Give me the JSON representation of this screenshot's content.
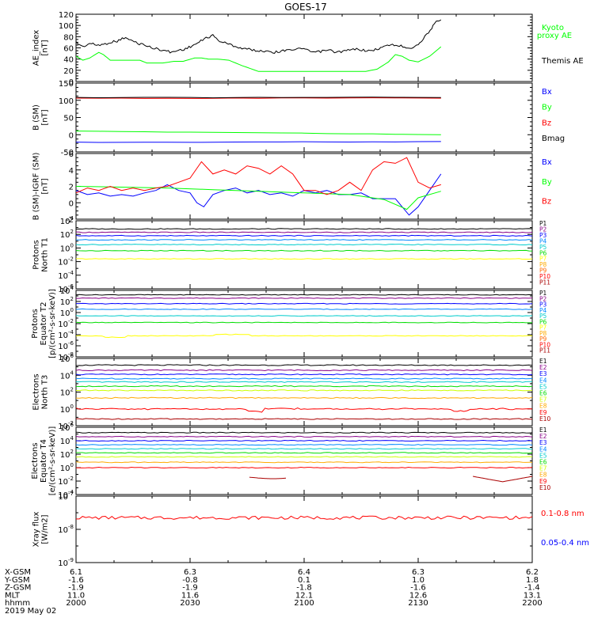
{
  "title": "GOES-17",
  "chart_data": [
    {
      "type": "line",
      "panel": "ae",
      "ylabel": [
        "AE_index",
        "[nT]"
      ],
      "yscale": "linear",
      "ylim": [
        0,
        120
      ],
      "yticks": [
        "0",
        "20",
        "40",
        "60",
        "80",
        "100",
        "120"
      ],
      "series": [
        {
          "name": "Kyoto",
          "name2": "proxy AE",
          "color": "#00ff00",
          "x": [
            2000,
            2003,
            2006,
            2010,
            2012,
            2015,
            2022,
            2028,
            2031,
            2038,
            2043,
            2047,
            2052,
            2055,
            2058,
            2062,
            2067,
            2073,
            2080,
            2090,
            2100,
            2112,
            2120,
            2127,
            2132,
            2137,
            2140,
            2143,
            2146,
            2150,
            2155,
            2158,
            2160
          ],
          "y": [
            45,
            38,
            42,
            52,
            48,
            38,
            38,
            38,
            33,
            33,
            36,
            36,
            42,
            42,
            40,
            40,
            38,
            28,
            18,
            18,
            18,
            18,
            18,
            18,
            22,
            35,
            48,
            45,
            38,
            35,
            45,
            55,
            62
          ]
        },
        {
          "name": "Themis AE",
          "color": "#000000",
          "x": [
            2000,
            2003,
            2006,
            2009,
            2012,
            2015,
            2018,
            2021,
            2024,
            2027,
            2030,
            2033,
            2036,
            2039,
            2042,
            2045,
            2048,
            2051,
            2054,
            2057,
            2060,
            2063,
            2066,
            2069,
            2072,
            2075,
            2078,
            2081,
            2084,
            2087,
            2090,
            2093,
            2096,
            2099,
            2102,
            2105,
            2108,
            2111,
            2114,
            2117,
            2120,
            2123,
            2126,
            2129,
            2132,
            2135,
            2138,
            2141,
            2144,
            2147,
            2150,
            2153,
            2156,
            2158,
            2160
          ],
          "y": [
            70,
            62,
            68,
            65,
            66,
            70,
            72,
            78,
            74,
            68,
            66,
            60,
            58,
            55,
            52,
            56,
            58,
            64,
            70,
            78,
            82,
            72,
            68,
            64,
            60,
            58,
            56,
            54,
            55,
            52,
            54,
            58,
            56,
            60,
            54,
            52,
            54,
            56,
            52,
            54,
            56,
            58,
            56,
            54,
            58,
            62,
            66,
            64,
            62,
            60,
            66,
            80,
            96,
            106,
            110
          ]
        }
      ]
    },
    {
      "type": "line",
      "panel": "b",
      "ylabel": [
        "B (SM)",
        "[nT]"
      ],
      "yscale": "linear",
      "ylim": [
        -50,
        150
      ],
      "yticks": [
        "-50",
        "0",
        "50",
        "100",
        "150"
      ],
      "series": [
        {
          "name": "Bx",
          "color": "#0000ff",
          "x": [
            2000,
            2040,
            2080,
            2120,
            2160
          ],
          "y": [
            -22,
            -22,
            -21,
            -21,
            -20
          ]
        },
        {
          "name": "By",
          "color": "#00ff00",
          "x": [
            2000,
            2040,
            2080,
            2120,
            2160
          ],
          "y": [
            10,
            8,
            6,
            3,
            0
          ]
        },
        {
          "name": "Bz",
          "color": "#ff0000",
          "x": [
            2000,
            2040,
            2080,
            2120,
            2160
          ],
          "y": [
            106,
            106,
            106,
            107,
            106
          ]
        },
        {
          "name": "Bmag",
          "color": "#000000",
          "x": [
            2000,
            2040,
            2080,
            2120,
            2160
          ],
          "y": [
            108,
            108,
            108,
            109,
            108
          ]
        }
      ]
    },
    {
      "type": "line",
      "panel": "bigrf",
      "ylabel": [
        "B (SM)-IGRF (SM)",
        "[nT]"
      ],
      "yscale": "linear",
      "ylim": [
        -2,
        6
      ],
      "yticks": [
        "-2",
        "0",
        "2",
        "4",
        "6"
      ],
      "series": [
        {
          "name": "Bx",
          "color": "#0000ff",
          "x": [
            2000,
            2005,
            2010,
            2015,
            2020,
            2025,
            2030,
            2035,
            2040,
            2045,
            2050,
            2053,
            2056,
            2060,
            2065,
            2070,
            2075,
            2080,
            2085,
            2090,
            2095,
            2100,
            2105,
            2110,
            2115,
            2120,
            2125,
            2130,
            2135,
            2140,
            2143,
            2146,
            2150,
            2155,
            2160
          ],
          "y": [
            1.5,
            1.0,
            1.2,
            0.8,
            1.0,
            0.8,
            1.2,
            1.5,
            2.2,
            1.5,
            1.2,
            0.0,
            -0.5,
            1.0,
            1.5,
            1.8,
            1.2,
            1.5,
            1.0,
            1.2,
            0.8,
            1.5,
            1.2,
            1.5,
            1.0,
            1.0,
            1.2,
            0.5,
            0.5,
            0.5,
            -0.5,
            -1.5,
            -0.5,
            1.5,
            3.5
          ]
        },
        {
          "name": "By",
          "color": "#00ff00",
          "x": [
            2000,
            2020,
            2040,
            2060,
            2080,
            2100,
            2120,
            2135,
            2145,
            2150,
            2160
          ],
          "y": [
            2.0,
            1.9,
            1.8,
            1.6,
            1.4,
            1.2,
            1.0,
            0.4,
            -0.8,
            0.6,
            1.4
          ]
        },
        {
          "name": "Bz",
          "color": "#ff0000",
          "x": [
            2000,
            2005,
            2010,
            2015,
            2020,
            2025,
            2030,
            2035,
            2040,
            2045,
            2050,
            2055,
            2060,
            2065,
            2070,
            2075,
            2080,
            2085,
            2090,
            2095,
            2100,
            2105,
            2110,
            2115,
            2120,
            2125,
            2130,
            2135,
            2140,
            2145,
            2150,
            2155,
            2160
          ],
          "y": [
            1.2,
            1.8,
            1.5,
            2.0,
            1.5,
            1.8,
            1.5,
            1.8,
            2.0,
            2.5,
            3.0,
            5.0,
            3.5,
            4.0,
            3.5,
            4.5,
            4.2,
            3.5,
            4.5,
            3.5,
            1.5,
            1.5,
            1.0,
            1.5,
            2.5,
            1.5,
            4.0,
            5.0,
            4.8,
            5.5,
            2.5,
            1.8,
            2.2
          ]
        }
      ]
    },
    {
      "type": "line",
      "panel": "protons-t1",
      "ylabel": [
        "Protons",
        "North T1"
      ],
      "yscale": "log",
      "ylim": [
        -6,
        4
      ],
      "yticks": [
        "10^-6",
        "10^-4",
        "10^-2",
        "10^0",
        "10^2",
        "10^4"
      ],
      "series": [
        {
          "name": "P1",
          "color": "#000000",
          "y": 2.8
        },
        {
          "name": "P2",
          "color": "#880088",
          "y": 2.3
        },
        {
          "name": "P3",
          "color": "#0000ff",
          "y": 1.8
        },
        {
          "name": "P4",
          "color": "#0088ff",
          "y": 1.2
        },
        {
          "name": "P5",
          "color": "#00cccc",
          "y": 0.5
        },
        {
          "name": "P6",
          "color": "#00dd00",
          "y": -0.4
        },
        {
          "name": "P7",
          "color": "#ffff00",
          "y": -1.6
        },
        {
          "name": "P8",
          "color": "#ffaa00",
          "y": -2.9
        },
        {
          "name": "P9",
          "color": "#ff6600",
          "y": -4.0
        },
        {
          "name": "P10",
          "color": "#ff0000",
          "y": -5.0
        },
        {
          "name": "P11",
          "color": "#aa0000",
          "y": -5.5
        }
      ],
      "note": "P8-P11 not drawn in panel"
    },
    {
      "type": "line",
      "panel": "protons-t2",
      "ylabel": [
        "Protons",
        "Equator T2",
        "[p/(cm²-s-sr-keV)]"
      ],
      "yscale": "log",
      "ylim": [
        -8,
        4
      ],
      "yticks": [
        "10^-8",
        "10^-6",
        "10^-4",
        "10^-2",
        "10^0",
        "10^2",
        "10^4"
      ],
      "series": [
        {
          "name": "P1",
          "color": "#000000",
          "y": 3.2
        },
        {
          "name": "P2",
          "color": "#880088",
          "y": 2.6
        },
        {
          "name": "P3",
          "color": "#0000ff",
          "y": 1.6
        },
        {
          "name": "P4",
          "color": "#0088ff",
          "y": 0.6
        },
        {
          "name": "P5",
          "color": "#00cccc",
          "y": -0.6
        },
        {
          "name": "P6",
          "color": "#00dd00",
          "y": -1.8
        },
        {
          "name": "P7",
          "color": "#ffff00",
          "y": -4.2
        },
        {
          "name": "P8",
          "color": "#ffaa00",
          "y": -5
        },
        {
          "name": "P9",
          "color": "#ff6600",
          "y": -6
        },
        {
          "name": "P10",
          "color": "#ff0000",
          "y": -7
        },
        {
          "name": "P11",
          "color": "#aa0000",
          "y": -7.5
        }
      ]
    },
    {
      "type": "line",
      "panel": "electrons-t3",
      "ylabel": [
        "Electrons",
        "North T3"
      ],
      "yscale": "log",
      "ylim": [
        -2,
        6
      ],
      "yticks": [
        "10^-2",
        "10^0",
        "10^2",
        "10^4",
        "10^6"
      ],
      "series": [
        {
          "name": "E1",
          "color": "#000000",
          "y": 5.2
        },
        {
          "name": "E2",
          "color": "#880088",
          "y": 4.6
        },
        {
          "name": "E3",
          "color": "#0000ff",
          "y": 4.1
        },
        {
          "name": "E4",
          "color": "#0088ff",
          "y": 3.6
        },
        {
          "name": "E5",
          "color": "#00cccc",
          "y": 3.2
        },
        {
          "name": "E6",
          "color": "#00dd00",
          "y": 2.7
        },
        {
          "name": "E7",
          "color": "#ccff00",
          "y": 2.2
        },
        {
          "name": "E8",
          "color": "#ffaa00",
          "y": 1.3
        },
        {
          "name": "E9",
          "color": "#ff0000",
          "y": 0.0
        },
        {
          "name": "E10",
          "color": "#aa0000",
          "y": -1.2
        }
      ]
    },
    {
      "type": "line",
      "panel": "electrons-t4",
      "ylabel": [
        "Electrons",
        "Equator T4",
        "[e/(cm²-s-sr-keV)]"
      ],
      "yscale": "log",
      "ylim": [
        -4,
        6
      ],
      "yticks": [
        "10^-4",
        "10^-2",
        "10^0",
        "10^2",
        "10^4",
        "10^6"
      ],
      "series": [
        {
          "name": "E1",
          "color": "#000000",
          "y": 5.2
        },
        {
          "name": "E2",
          "color": "#880088",
          "y": 4.6
        },
        {
          "name": "E3",
          "color": "#0000ff",
          "y": 4.0
        },
        {
          "name": "E4",
          "color": "#0088ff",
          "y": 3.4
        },
        {
          "name": "E5",
          "color": "#00cccc",
          "y": 2.8
        },
        {
          "name": "E6",
          "color": "#00dd00",
          "y": 2.2
        },
        {
          "name": "E7",
          "color": "#ccff00",
          "y": 1.6
        },
        {
          "name": "E8",
          "color": "#ffaa00",
          "y": 0.8
        },
        {
          "name": "E9",
          "color": "#ff0000",
          "y": 0.0
        },
        {
          "name": "E10",
          "color": "#aa0000",
          "y": -1.4
        }
      ]
    },
    {
      "type": "line",
      "panel": "xray",
      "ylabel": [
        "Xray flux",
        "[W/m2]"
      ],
      "yscale": "log",
      "ylim": [
        -9,
        -7
      ],
      "yticks": [
        "10^-9",
        "10^-8",
        "10^-7"
      ],
      "series": [
        {
          "name": "0.1-0.8 nm",
          "color": "#ff0000",
          "y": -7.65
        },
        {
          "name": "0.05-0.4 nm",
          "color": "#0000ff"
        }
      ]
    }
  ],
  "xaxis": {
    "xlim": [
      2000,
      2200
    ],
    "rows": [
      {
        "label": "X-GSM",
        "values": [
          "6.1",
          "6.3",
          "6.4",
          "6.3",
          "6.2"
        ]
      },
      {
        "label": "Y-GSM",
        "values": [
          "-1.6",
          "-0.8",
          "0.1",
          "1.0",
          "1.8"
        ]
      },
      {
        "label": "Z-GSM",
        "values": [
          "-1.9",
          "-1.9",
          "-1.8",
          "-1.6",
          "-1.4"
        ]
      },
      {
        "label": "MLT",
        "values": [
          "11.0",
          "11.6",
          "12.1",
          "12.6",
          "13.1"
        ]
      },
      {
        "label": "hhmm",
        "values": [
          "2000",
          "2030",
          "2100",
          "2130",
          "2200"
        ]
      }
    ],
    "date": "2019 May 02"
  }
}
